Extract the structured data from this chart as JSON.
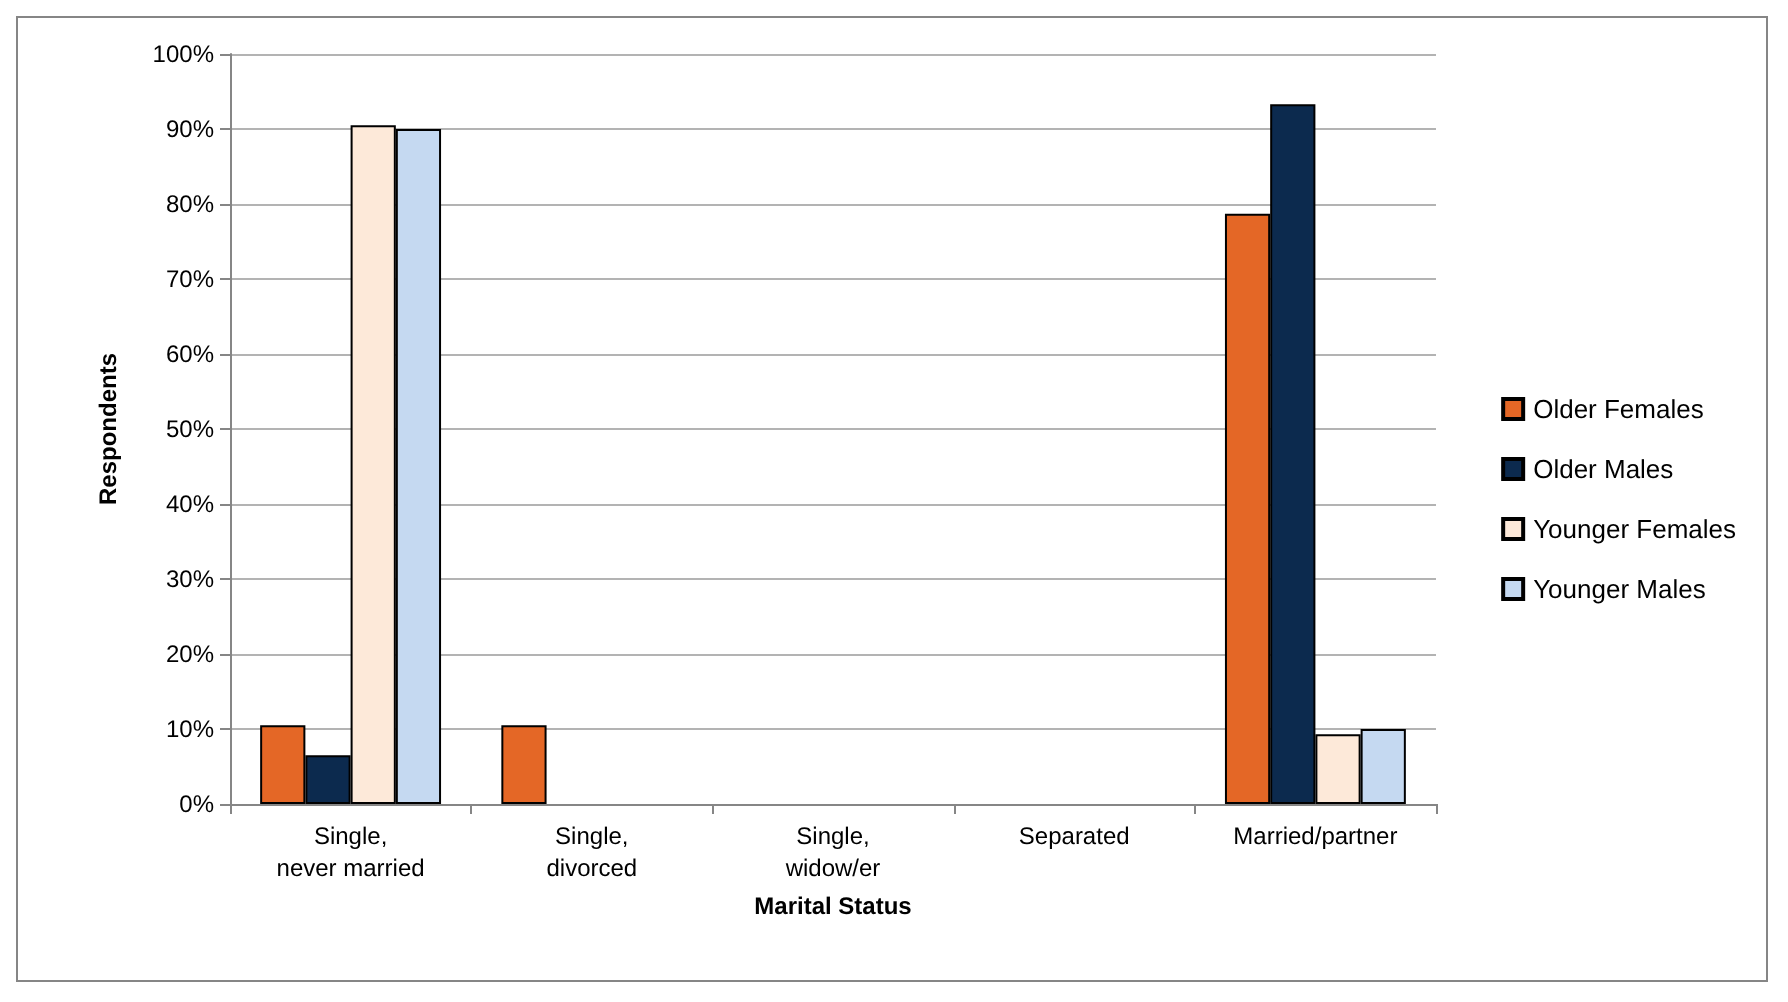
{
  "chart_data": {
    "type": "bar",
    "xlabel": "Marital Status",
    "ylabel": "Respondents",
    "categories": [
      "Single,\nnever married",
      "Single,\ndivorced",
      "Single,\nwidow/er",
      "Separated",
      "Married/partner"
    ],
    "series": [
      {
        "name": "Older Females",
        "color": "#e46726",
        "values": [
          10.5,
          10.5,
          0,
          0,
          78.7
        ]
      },
      {
        "name": "Older Males",
        "color": "#0c2a4e",
        "values": [
          6.5,
          0,
          0,
          0,
          93.3
        ]
      },
      {
        "name": "Younger Females",
        "color": "#fde9d9",
        "values": [
          90.5,
          0,
          0,
          0,
          9.3
        ]
      },
      {
        "name": "Younger Males",
        "color": "#c5d9f1",
        "values": [
          90,
          0,
          0,
          0,
          10
        ]
      }
    ],
    "ylim": [
      0,
      100
    ],
    "yticks": [
      {
        "value": 0,
        "label": "0%"
      },
      {
        "value": 10,
        "label": "10%"
      },
      {
        "value": 20,
        "label": "20%"
      },
      {
        "value": 30,
        "label": "30%"
      },
      {
        "value": 40,
        "label": "40%"
      },
      {
        "value": 50,
        "label": "50%"
      },
      {
        "value": 60,
        "label": "60%"
      },
      {
        "value": 70,
        "label": "70%"
      },
      {
        "value": 80,
        "label": "80%"
      },
      {
        "value": 90,
        "label": "90%"
      },
      {
        "value": 100,
        "label": "100%"
      }
    ],
    "grid": "y",
    "legend": "right"
  }
}
